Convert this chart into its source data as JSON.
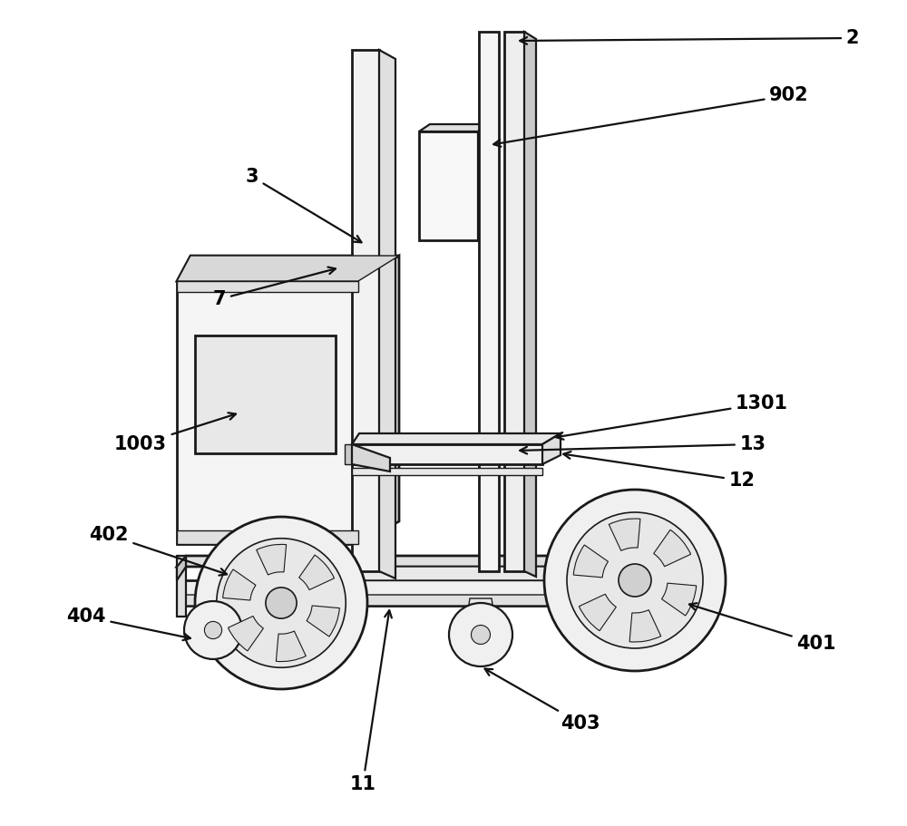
{
  "background_color": "#ffffff",
  "figure_width": 10.0,
  "figure_height": 9.11,
  "line_color": "#1a1a1a",
  "arrow_color": "#111111",
  "label_fontsize": 15,
  "fill_light": "#f0f0f0",
  "fill_mid": "#e0e0e0",
  "fill_dark": "#c8c8c8",
  "fill_body": "#ececec",
  "lw_main": 1.6,
  "lw_thick": 2.0
}
